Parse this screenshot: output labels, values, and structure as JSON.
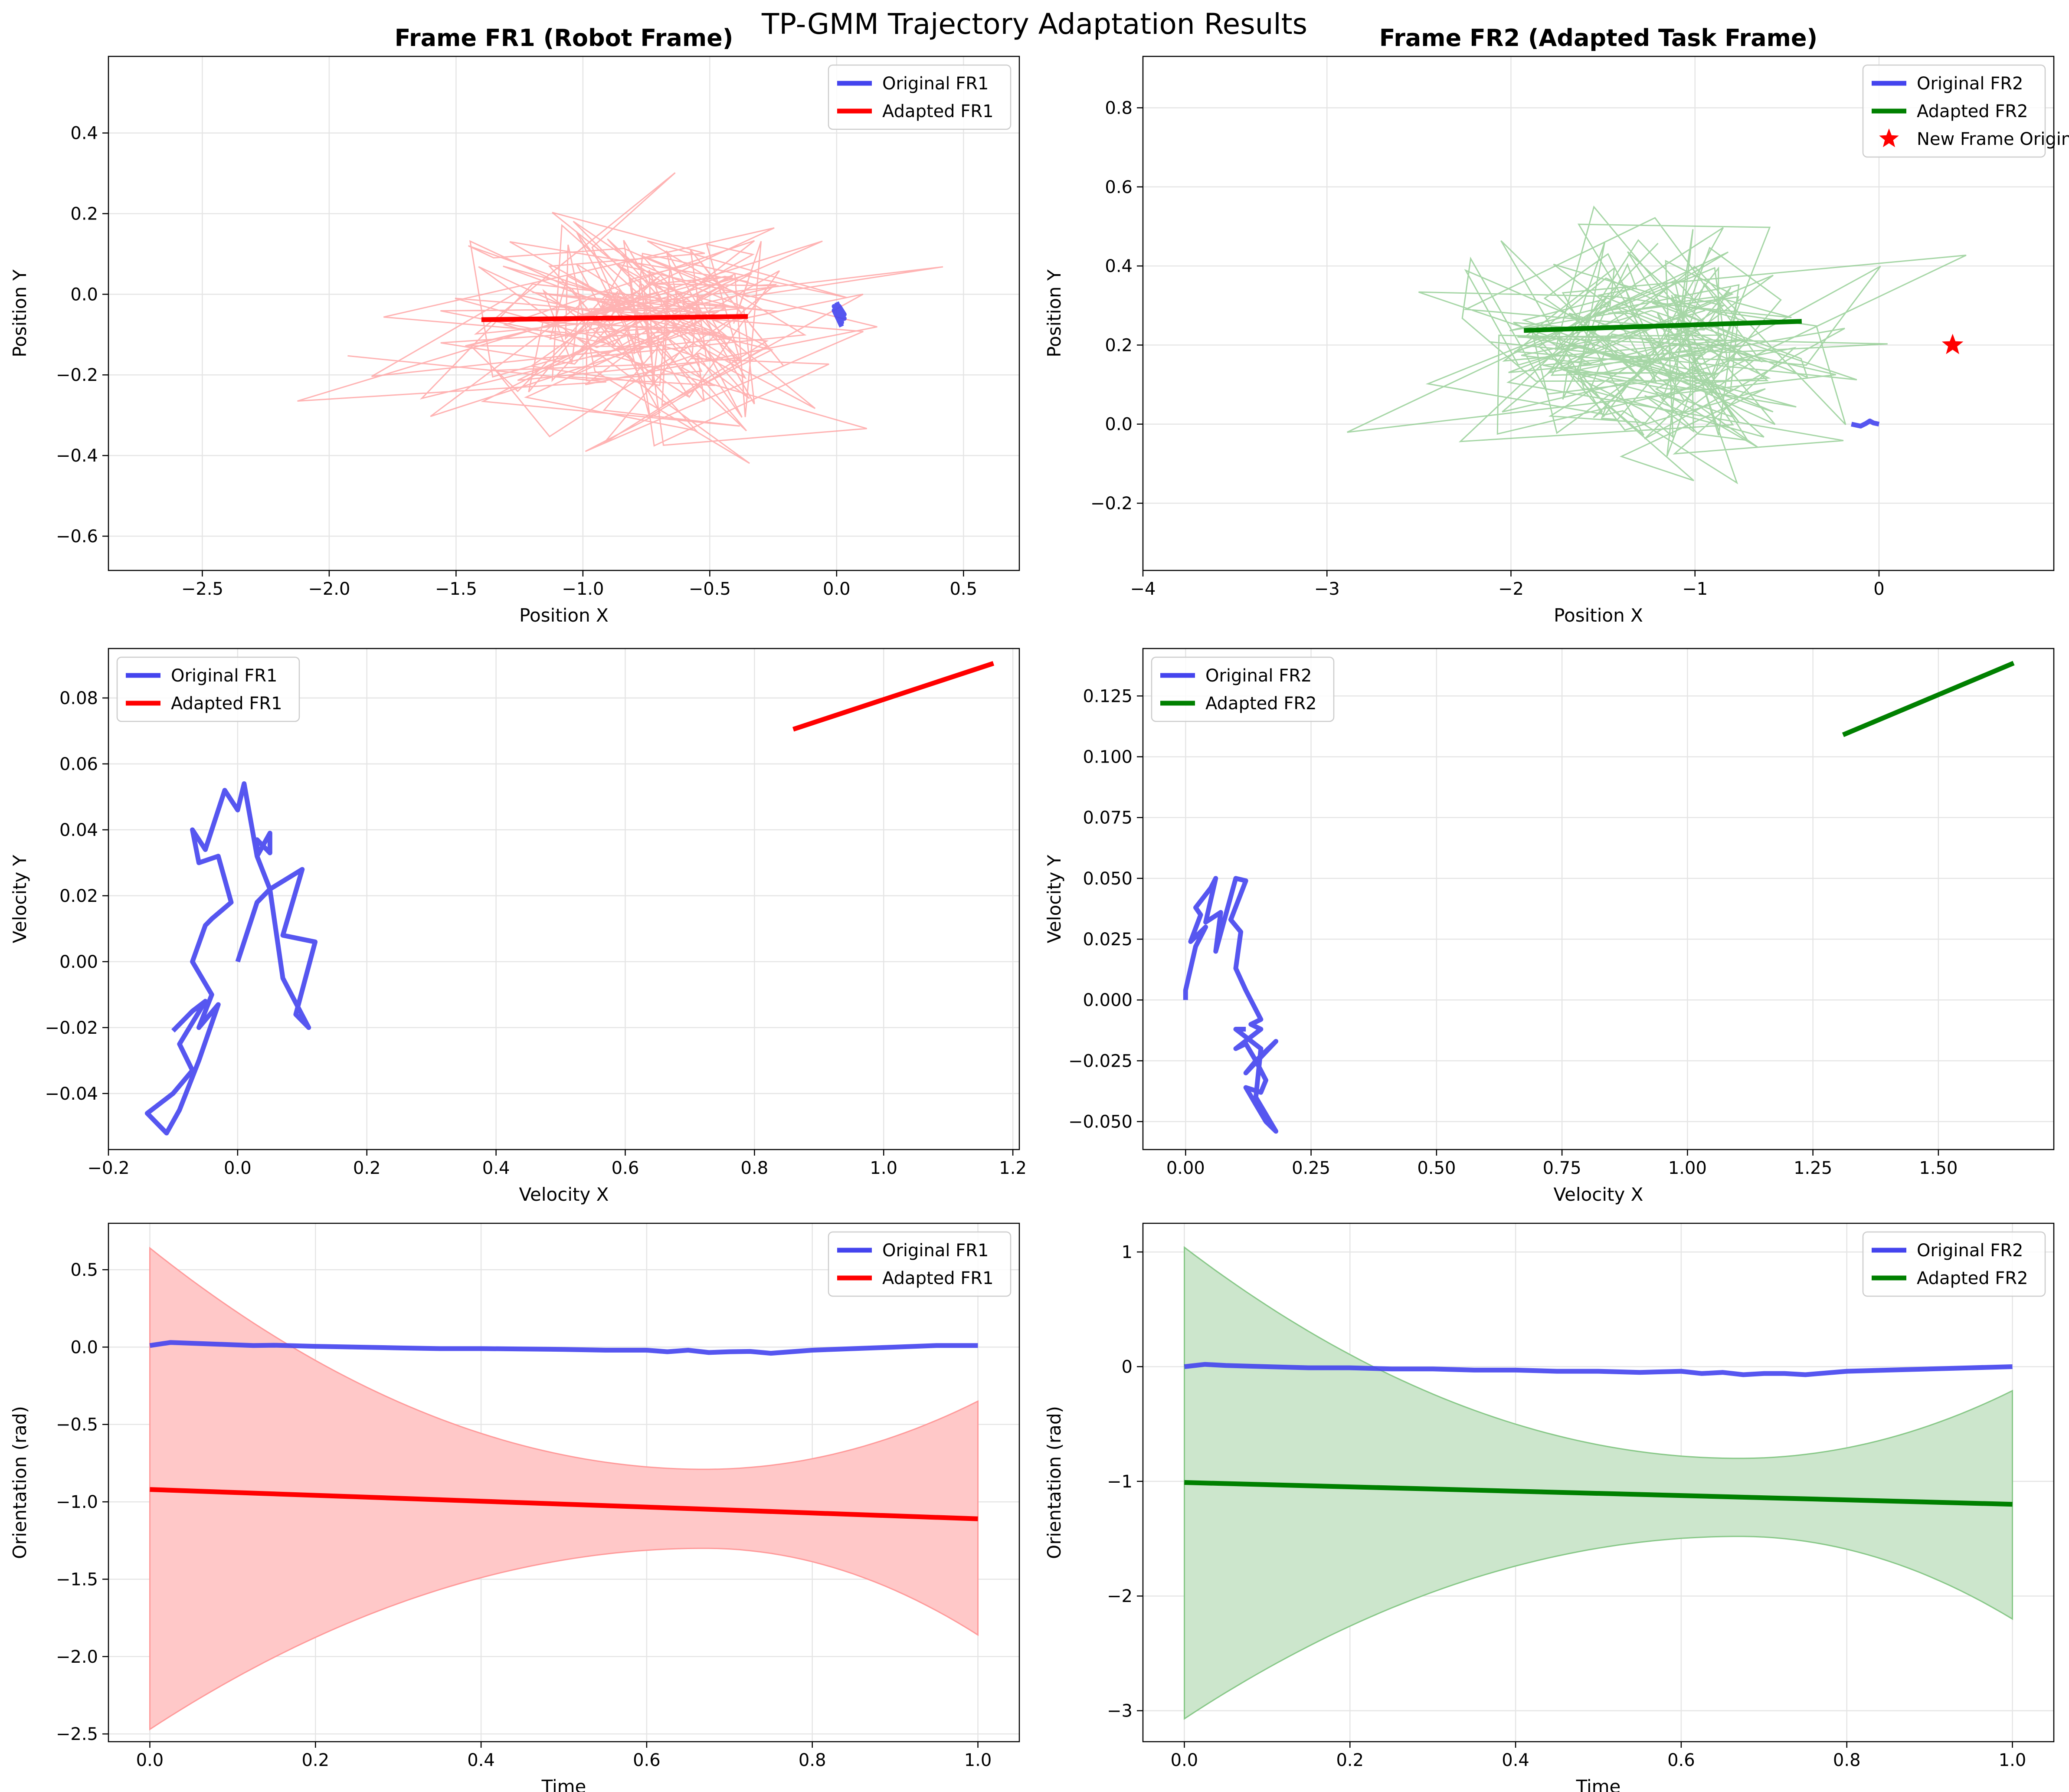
{
  "suptitle": "TP-GMM Trajectory Adaptation Results",
  "colors": {
    "original": "#4444ee",
    "adapted_fr1": "#ff0000",
    "adapted_fr2": "#008000",
    "samples_fr1": "#ff9a9a",
    "samples_fr2": "#88c888",
    "band_fr1": "#ffc8c8",
    "band_fr2": "#cce6cc",
    "band_edge_fr1": "#ff9a9a",
    "band_edge_fr2": "#88c888",
    "grid": "#e5e5e5",
    "star": "#ff0000"
  },
  "chart_data": [
    {
      "id": "pos_fr1",
      "type": "line",
      "title": "Frame FR1 (Robot Frame)",
      "xlabel": "Position X",
      "ylabel": "Position Y",
      "xlim": [
        -2.87,
        0.72
      ],
      "ylim": [
        -0.685,
        0.59
      ],
      "xticks": [
        -2.5,
        -2.0,
        -1.5,
        -1.0,
        -0.5,
        0.0,
        0.5
      ],
      "yticks": [
        -0.6,
        -0.4,
        -0.2,
        0.0,
        0.2,
        0.4
      ],
      "xtick_labels": [
        "−2.5",
        "−2.0",
        "−1.5",
        "−1.0",
        "−0.5",
        "0.0",
        "0.5"
      ],
      "ytick_labels": [
        "−0.6",
        "−0.4",
        "−0.2",
        "0.0",
        "0.2",
        "0.4"
      ],
      "legend_position": "upper-right",
      "series": [
        {
          "name": "Original FR1",
          "color": "#4444ee",
          "x": [
            0.0,
            0.02,
            -0.01,
            0.03,
            0.0,
            0.02,
            0.01,
            0.03,
            -0.01,
            0.02
          ],
          "y": [
            -0.02,
            -0.05,
            -0.03,
            -0.06,
            -0.04,
            -0.07,
            -0.03,
            -0.05,
            -0.04,
            -0.08
          ]
        },
        {
          "name": "Adapted FR1",
          "color": "#ff0000",
          "x": [
            -1.4,
            -0.35
          ],
          "y": [
            -0.063,
            -0.055
          ]
        }
      ],
      "samples": {
        "color": "#ff9a9a",
        "count": 200,
        "x_center": -0.8,
        "y_center": -0.08,
        "x_extent": [
          -2.75,
          0.55
        ],
        "y_extent": [
          -0.63,
          0.54
        ]
      }
    },
    {
      "id": "pos_fr2",
      "type": "line",
      "title": "Frame FR2 (Adapted Task Frame)",
      "xlabel": "Position X",
      "ylabel": "Position Y",
      "xlim": [
        -4.0,
        0.95
      ],
      "ylim": [
        -0.37,
        0.93
      ],
      "xticks": [
        -4,
        -3,
        -2,
        -1,
        0
      ],
      "yticks": [
        -0.2,
        0.0,
        0.2,
        0.4,
        0.6,
        0.8
      ],
      "xtick_labels": [
        "−4",
        "−3",
        "−2",
        "−1",
        "0"
      ],
      "ytick_labels": [
        "−0.2",
        "0.0",
        "0.2",
        "0.4",
        "0.6",
        "0.8"
      ],
      "legend_position": "upper-right",
      "series": [
        {
          "name": "Original FR2",
          "color": "#4444ee",
          "x": [
            -0.15,
            -0.1,
            -0.07,
            -0.05,
            -0.03,
            0.0
          ],
          "y": [
            0.0,
            -0.005,
            0.002,
            0.008,
            0.003,
            0.0
          ]
        },
        {
          "name": "Adapted FR2",
          "color": "#008000",
          "x": [
            -1.93,
            -0.42
          ],
          "y": [
            0.237,
            0.26
          ]
        }
      ],
      "markers": [
        {
          "name": "New Frame Origin",
          "x": 0.4,
          "y": 0.2,
          "color": "#ff0000"
        }
      ],
      "samples": {
        "color": "#88c888",
        "count": 200,
        "x_center": -1.25,
        "y_center": 0.2,
        "x_extent": [
          -3.8,
          0.7
        ],
        "y_extent": [
          -0.31,
          0.88
        ]
      }
    },
    {
      "id": "vel_fr1",
      "type": "line",
      "title": "",
      "xlabel": "Velocity X",
      "ylabel": "Velocity Y",
      "xlim": [
        -0.2,
        1.21
      ],
      "ylim": [
        -0.057,
        0.095
      ],
      "xticks": [
        -0.2,
        0.0,
        0.2,
        0.4,
        0.6,
        0.8,
        1.0,
        1.2
      ],
      "yticks": [
        -0.04,
        -0.02,
        0.0,
        0.02,
        0.04,
        0.06,
        0.08
      ],
      "xtick_labels": [
        "−0.2",
        "0.0",
        "0.2",
        "0.4",
        "0.6",
        "0.8",
        "1.0",
        "1.2"
      ],
      "ytick_labels": [
        "−0.04",
        "−0.02",
        "0.00",
        "0.02",
        "0.04",
        "0.06",
        "0.08"
      ],
      "legend_position": "upper-left",
      "series": [
        {
          "name": "Original FR1",
          "color": "#4444ee",
          "x": [
            0.0,
            0.03,
            0.05,
            0.1,
            0.07,
            0.12,
            0.09,
            0.11,
            0.07,
            0.05,
            0.03,
            0.05,
            0.05,
            0.03,
            0.03,
            0.01,
            0.0,
            -0.02,
            -0.05,
            -0.07,
            -0.06,
            -0.03,
            -0.01,
            -0.04,
            -0.05,
            -0.07,
            -0.04,
            -0.06,
            -0.03,
            -0.06,
            -0.09,
            -0.11,
            -0.14,
            -0.1,
            -0.07,
            -0.09,
            -0.05,
            -0.07,
            -0.1
          ],
          "y": [
            0.0,
            0.018,
            0.022,
            0.028,
            0.008,
            0.006,
            -0.016,
            -0.02,
            -0.005,
            0.022,
            0.032,
            0.039,
            0.033,
            0.037,
            0.032,
            0.054,
            0.046,
            0.052,
            0.034,
            0.04,
            0.03,
            0.032,
            0.018,
            0.013,
            0.011,
            0.0,
            -0.01,
            -0.02,
            -0.013,
            -0.03,
            -0.045,
            -0.052,
            -0.046,
            -0.04,
            -0.033,
            -0.025,
            -0.012,
            -0.015,
            -0.021
          ]
        },
        {
          "name": "Adapted FR1",
          "color": "#ff0000",
          "x": [
            0.86,
            1.17
          ],
          "y": [
            0.0705,
            0.0905
          ]
        }
      ]
    },
    {
      "id": "vel_fr2",
      "type": "line",
      "title": "",
      "xlabel": "Velocity X",
      "ylabel": "Velocity Y",
      "xlim": [
        -0.085,
        1.73
      ],
      "ylim": [
        -0.0615,
        0.1445
      ],
      "xticks": [
        0.0,
        0.25,
        0.5,
        0.75,
        1.0,
        1.25,
        1.5
      ],
      "yticks": [
        -0.05,
        -0.025,
        0.0,
        0.025,
        0.05,
        0.075,
        0.1,
        0.125
      ],
      "xtick_labels": [
        "0.00",
        "0.25",
        "0.50",
        "0.75",
        "1.00",
        "1.25",
        "1.50"
      ],
      "ytick_labels": [
        "−0.050",
        "−0.025",
        "0.000",
        "0.025",
        "0.050",
        "0.075",
        "0.100",
        "0.125"
      ],
      "legend_position": "upper-left",
      "series": [
        {
          "name": "Original FR2",
          "color": "#4444ee",
          "x": [
            0.0,
            0.0,
            0.02,
            0.04,
            0.01,
            0.03,
            0.02,
            0.05,
            0.06,
            0.04,
            0.07,
            0.06,
            0.1,
            0.12,
            0.09,
            0.11,
            0.1,
            0.12,
            0.15,
            0.13,
            0.15,
            0.1,
            0.12,
            0.14,
            0.12,
            0.18,
            0.14,
            0.16,
            0.15,
            0.12,
            0.14,
            0.16,
            0.18,
            0.14,
            0.15,
            0.1,
            0.12
          ],
          "y": [
            0.0,
            0.004,
            0.022,
            0.03,
            0.024,
            0.035,
            0.038,
            0.046,
            0.05,
            0.032,
            0.036,
            0.02,
            0.05,
            0.049,
            0.033,
            0.028,
            0.013,
            0.004,
            -0.008,
            -0.01,
            -0.012,
            -0.02,
            -0.018,
            -0.025,
            -0.03,
            -0.017,
            -0.025,
            -0.033,
            -0.038,
            -0.036,
            -0.043,
            -0.05,
            -0.054,
            -0.04,
            -0.02,
            -0.012,
            -0.012
          ]
        },
        {
          "name": "Adapted FR2",
          "color": "#008000",
          "x": [
            1.31,
            1.65
          ],
          "y": [
            0.109,
            0.1385
          ]
        }
      ]
    },
    {
      "id": "ori_fr1",
      "type": "area",
      "title": "",
      "xlabel": "Time",
      "ylabel": "Orientation (rad)",
      "xlim": [
        -0.05,
        1.05
      ],
      "ylim": [
        -2.55,
        0.8
      ],
      "xticks": [
        0.0,
        0.2,
        0.4,
        0.6,
        0.8,
        1.0
      ],
      "yticks": [
        -2.5,
        -2.0,
        -1.5,
        -1.0,
        -0.5,
        0.0,
        0.5
      ],
      "xtick_labels": [
        "0.0",
        "0.2",
        "0.4",
        "0.6",
        "0.8",
        "1.0"
      ],
      "ytick_labels": [
        "−2.5",
        "−2.0",
        "−1.5",
        "−1.0",
        "−0.5",
        "0.0",
        "0.5"
      ],
      "legend_position": "upper-right",
      "band": {
        "color": "#ffc8c8",
        "edge": "#ff9a9a",
        "upper": [
          0.64,
          -0.79,
          -0.35
        ],
        "lower": [
          -2.47,
          -1.3,
          -1.86
        ],
        "dip_at": 0.67
      },
      "series": [
        {
          "name": "Original FR1",
          "color": "#4444ee",
          "x": [
            0.0,
            0.025,
            0.05,
            0.075,
            0.1,
            0.125,
            0.15,
            0.2,
            0.25,
            0.3,
            0.35,
            0.4,
            0.45,
            0.5,
            0.55,
            0.6,
            0.625,
            0.65,
            0.675,
            0.7,
            0.725,
            0.75,
            0.8,
            0.85,
            0.9,
            0.95,
            1.0
          ],
          "y": [
            0.01,
            0.03,
            0.025,
            0.02,
            0.015,
            0.01,
            0.012,
            0.005,
            0.0,
            -0.005,
            -0.01,
            -0.01,
            -0.012,
            -0.015,
            -0.02,
            -0.02,
            -0.03,
            -0.02,
            -0.035,
            -0.03,
            -0.028,
            -0.04,
            -0.02,
            -0.01,
            0.0,
            0.01,
            0.01
          ]
        },
        {
          "name": "Adapted FR1",
          "color": "#ff0000",
          "x": [
            0.0,
            1.0
          ],
          "y": [
            -0.92,
            -1.11
          ]
        }
      ]
    },
    {
      "id": "ori_fr2",
      "type": "area",
      "title": "",
      "xlabel": "Time",
      "ylabel": "Orientation (rad)",
      "xlim": [
        -0.05,
        1.05
      ],
      "ylim": [
        -3.27,
        1.25
      ],
      "xticks": [
        0.0,
        0.2,
        0.4,
        0.6,
        0.8,
        1.0
      ],
      "yticks": [
        -3,
        -2,
        -1,
        0,
        1
      ],
      "xtick_labels": [
        "0.0",
        "0.2",
        "0.4",
        "0.6",
        "0.8",
        "1.0"
      ],
      "ytick_labels": [
        "−3",
        "−2",
        "−1",
        "0",
        "1"
      ],
      "legend_position": "upper-right",
      "band": {
        "color": "#cce6cc",
        "edge": "#88c888",
        "upper": [
          1.04,
          -0.8,
          -0.21
        ],
        "lower": [
          -3.07,
          -1.48,
          -2.2
        ],
        "dip_at": 0.67
      },
      "series": [
        {
          "name": "Original FR2",
          "color": "#4444ee",
          "x": [
            0.0,
            0.025,
            0.05,
            0.1,
            0.15,
            0.2,
            0.25,
            0.3,
            0.35,
            0.4,
            0.45,
            0.5,
            0.55,
            0.6,
            0.625,
            0.65,
            0.675,
            0.7,
            0.725,
            0.75,
            0.8,
            0.85,
            0.9,
            0.95,
            1.0
          ],
          "y": [
            0.0,
            0.02,
            0.01,
            0.0,
            -0.01,
            -0.01,
            -0.02,
            -0.02,
            -0.03,
            -0.03,
            -0.04,
            -0.04,
            -0.05,
            -0.04,
            -0.06,
            -0.05,
            -0.07,
            -0.06,
            -0.06,
            -0.07,
            -0.04,
            -0.03,
            -0.02,
            -0.01,
            0.0
          ]
        },
        {
          "name": "Adapted FR2",
          "color": "#008000",
          "x": [
            0.0,
            1.0
          ],
          "y": [
            -1.01,
            -1.2
          ]
        }
      ]
    }
  ]
}
